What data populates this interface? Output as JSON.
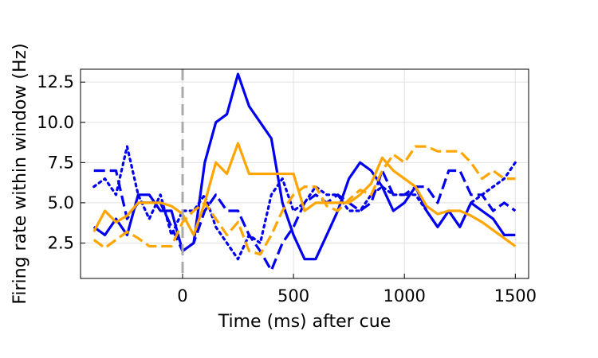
{
  "chart_data": {
    "type": "line",
    "title": "",
    "xlabel": "Time (ms) after cue",
    "ylabel": "Firing rate within window (Hz)",
    "xlim": [
      -460,
      1560
    ],
    "ylim": [
      0.3,
      13.3
    ],
    "xticks": [
      0,
      500,
      1000,
      1500
    ],
    "xtick_labels": [
      "0",
      "500",
      "1000",
      "1500"
    ],
    "yticks": [
      2.5,
      5.0,
      7.5,
      10.0,
      12.5
    ],
    "ytick_labels": [
      "2.5",
      "5.0",
      "7.5",
      "10.0",
      "12.5"
    ],
    "grid": true,
    "legend": "none",
    "cue_marker": {
      "x": 0,
      "color": "#aaaaaa",
      "style": "dashed"
    },
    "series": [
      {
        "color": "#0000ee",
        "style": "solid",
        "x": [
          -400,
          -350,
          -300,
          -250,
          -200,
          -150,
          -100,
          -50,
          0,
          50,
          100,
          150,
          200,
          250,
          300,
          350,
          400,
          450,
          500,
          550,
          600,
          650,
          700,
          750,
          800,
          850,
          900,
          950,
          1000,
          1050,
          1100,
          1150,
          1200,
          1250,
          1300,
          1350,
          1400,
          1450,
          1500
        ],
        "y": [
          3.5,
          3.0,
          4.0,
          3.0,
          5.5,
          5.5,
          4.5,
          4.5,
          2.0,
          2.5,
          7.5,
          10.0,
          10.5,
          13.0,
          11.0,
          10.0,
          9.0,
          5.0,
          3.0,
          1.5,
          1.5,
          3.0,
          4.5,
          6.5,
          7.5,
          7.0,
          6.0,
          4.5,
          5.0,
          6.0,
          4.5,
          3.5,
          4.5,
          3.5,
          5.0,
          4.5,
          4.0,
          3.0,
          3.0
        ]
      },
      {
        "color": "#0000ee",
        "style": "dashed",
        "x": [
          -400,
          -350,
          -300,
          -250,
          -200,
          -150,
          -100,
          -50,
          0,
          50,
          100,
          150,
          200,
          250,
          300,
          350,
          400,
          450,
          500,
          550,
          600,
          650,
          700,
          750,
          800,
          850,
          900,
          950,
          1000,
          1050,
          1100,
          1150,
          1200,
          1250,
          1300,
          1350,
          1400,
          1450,
          1500
        ],
        "y": [
          7.0,
          7.0,
          7.0,
          4.0,
          5.0,
          5.0,
          5.0,
          3.5,
          2.0,
          2.5,
          4.5,
          5.5,
          4.5,
          4.5,
          3.0,
          2.0,
          0.8,
          2.5,
          3.5,
          5.0,
          5.5,
          5.0,
          5.5,
          5.0,
          4.5,
          5.0,
          7.0,
          5.5,
          5.5,
          6.0,
          6.0,
          5.0,
          7.0,
          7.0,
          5.5,
          5.5,
          4.5,
          5.0,
          4.5
        ]
      },
      {
        "color": "#0000ee",
        "style": "dotted",
        "x": [
          -400,
          -350,
          -300,
          -250,
          -200,
          -150,
          -100,
          -50,
          0,
          50,
          100,
          150,
          200,
          250,
          300,
          350,
          400,
          450,
          500,
          550,
          600,
          650,
          700,
          750,
          800,
          850,
          900,
          950,
          1000,
          1050,
          1100,
          1150,
          1200,
          1250,
          1300,
          1350,
          1400,
          1450,
          1500
        ],
        "y": [
          6.0,
          6.5,
          5.5,
          8.5,
          5.5,
          4.0,
          5.5,
          3.0,
          4.5,
          4.5,
          5.5,
          3.5,
          2.5,
          1.5,
          3.0,
          2.5,
          5.5,
          6.5,
          4.5,
          5.0,
          6.0,
          5.5,
          5.5,
          4.5,
          4.5,
          5.5,
          6.0,
          5.5,
          5.5,
          5.5,
          4.5,
          3.5,
          4.5,
          3.5,
          5.0,
          5.5,
          6.0,
          6.5,
          7.5
        ]
      },
      {
        "color": "#ffa500",
        "style": "solid",
        "x": [
          -400,
          -350,
          -300,
          -250,
          -200,
          -150,
          -100,
          -50,
          0,
          50,
          100,
          150,
          200,
          250,
          300,
          350,
          400,
          450,
          500,
          550,
          600,
          650,
          700,
          750,
          800,
          850,
          900,
          950,
          1000,
          1050,
          1100,
          1150,
          1200,
          1250,
          1300,
          1350,
          1400,
          1450,
          1500
        ],
        "y": [
          3.2,
          4.5,
          3.8,
          4.2,
          5.0,
          5.0,
          5.0,
          4.8,
          4.3,
          3.0,
          5.0,
          7.5,
          6.8,
          8.7,
          6.8,
          6.8,
          6.8,
          6.8,
          6.8,
          4.5,
          5.0,
          5.0,
          5.0,
          5.0,
          5.5,
          6.2,
          7.8,
          7.0,
          6.5,
          6.0,
          4.8,
          4.3,
          4.5,
          4.5,
          4.2,
          3.8,
          3.3,
          2.8,
          2.3
        ]
      },
      {
        "color": "#ffa500",
        "style": "dashed",
        "x": [
          -400,
          -350,
          -300,
          -250,
          -200,
          -150,
          -100,
          -50,
          0,
          50,
          100,
          150,
          200,
          250,
          300,
          350,
          400,
          450,
          500,
          550,
          600,
          650,
          700,
          750,
          800,
          850,
          900,
          950,
          1000,
          1050,
          1100,
          1150,
          1200,
          1250,
          1300,
          1350,
          1400,
          1450,
          1500
        ],
        "y": [
          2.7,
          2.2,
          2.7,
          3.2,
          2.8,
          2.3,
          2.3,
          2.3,
          3.8,
          4.5,
          5.0,
          4.0,
          3.0,
          3.8,
          2.0,
          1.8,
          3.0,
          4.5,
          5.5,
          6.0,
          6.0,
          4.8,
          4.5,
          5.2,
          5.8,
          5.5,
          7.0,
          8.0,
          7.5,
          8.5,
          8.5,
          8.2,
          8.2,
          8.2,
          7.5,
          6.5,
          7.0,
          6.5,
          6.5
        ]
      }
    ]
  }
}
